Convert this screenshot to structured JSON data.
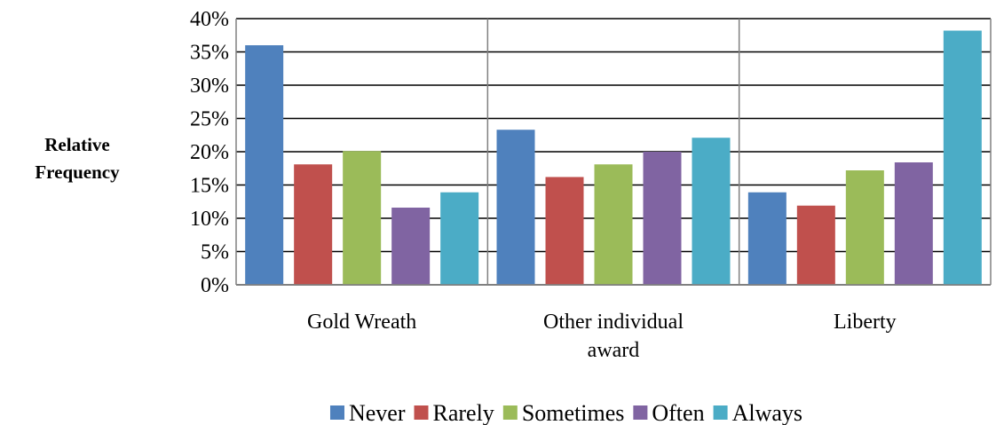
{
  "chart_data": {
    "type": "bar",
    "title": "",
    "xlabel": "",
    "ylabel": [
      "Relative",
      "Frequency"
    ],
    "ylim": [
      0,
      0.4
    ],
    "yticks": [
      0,
      0.05,
      0.1,
      0.15,
      0.2,
      0.25,
      0.3,
      0.35,
      0.4
    ],
    "ytick_labels": [
      "0%",
      "5%",
      "10%",
      "15%",
      "20%",
      "25%",
      "30%",
      "35%",
      "40%"
    ],
    "categories": [
      [
        "Gold Wreath"
      ],
      [
        "Other individual",
        "award"
      ],
      [
        "Liberty"
      ]
    ],
    "grid": true,
    "legend_position": "bottom",
    "series": [
      {
        "name": "Never",
        "color": "#4F81BD",
        "values": [
          0.36,
          0.233,
          0.139
        ]
      },
      {
        "name": "Rarely",
        "color": "#C0504D",
        "values": [
          0.181,
          0.162,
          0.119
        ]
      },
      {
        "name": "Sometimes",
        "color": "#9BBB59",
        "values": [
          0.201,
          0.181,
          0.172
        ]
      },
      {
        "name": "Often",
        "color": "#8064A2",
        "values": [
          0.116,
          0.2,
          0.184
        ]
      },
      {
        "name": "Always",
        "color": "#4BACC6",
        "values": [
          0.139,
          0.221,
          0.382
        ]
      }
    ]
  }
}
